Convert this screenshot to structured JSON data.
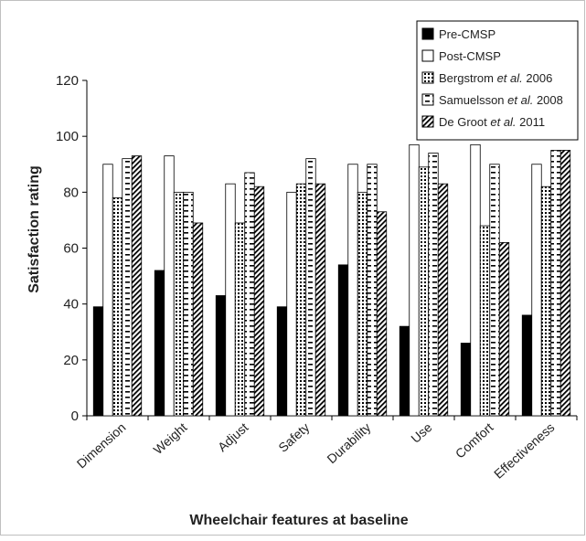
{
  "chart_data": {
    "type": "bar",
    "title": "",
    "xlabel": "Wheelchair features at baseline",
    "ylabel": "Satisfaction rating",
    "ylim": [
      0,
      120
    ],
    "yticks": [
      "0",
      "20",
      "40",
      "60",
      "80",
      "100",
      "120"
    ],
    "grid": false,
    "legend_position": "top-right",
    "categories": [
      "Dimension",
      "Weight",
      "Adjust",
      "Safety",
      "Durability",
      "Use",
      "Comfort",
      "Effectiveness"
    ],
    "series": [
      {
        "name": "Pre-CMSP",
        "name_parts": [
          "Pre-CMSP",
          "",
          ""
        ],
        "pattern": "solid-black",
        "values": [
          39,
          52,
          43,
          39,
          54,
          32,
          26,
          36
        ]
      },
      {
        "name": "Post-CMSP",
        "name_parts": [
          "Post-CMSP",
          "",
          ""
        ],
        "pattern": "white",
        "values": [
          90,
          93,
          83,
          80,
          90,
          97,
          97,
          90
        ]
      },
      {
        "name": "Bergstrom et al. 2006",
        "name_parts": [
          "Bergstrom ",
          "et al.",
          " 2006"
        ],
        "pattern": "dotted",
        "values": [
          78,
          80,
          69,
          83,
          80,
          89,
          68,
          82
        ]
      },
      {
        "name": "Samuelsson et al. 2008",
        "name_parts": [
          "Samuelsson ",
          "et al.",
          " 2008"
        ],
        "pattern": "horizontal-dashes",
        "values": [
          92,
          80,
          87,
          92,
          90,
          94,
          90,
          95
        ]
      },
      {
        "name": "De Groot et al. 2011",
        "name_parts": [
          "De Groot ",
          "et al.",
          " 2011"
        ],
        "pattern": "diagonal",
        "values": [
          93,
          69,
          82,
          83,
          73,
          83,
          62,
          95
        ]
      }
    ]
  }
}
